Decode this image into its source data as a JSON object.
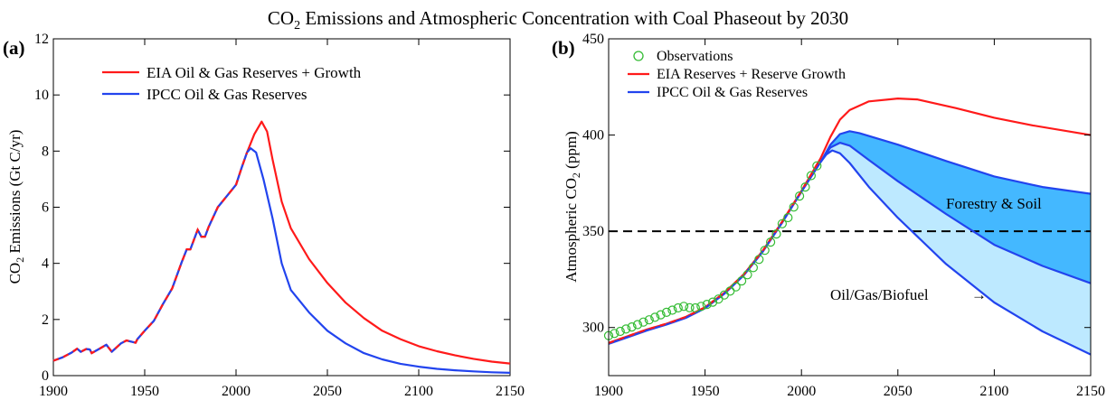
{
  "title_main": "CO",
  "title_sub": "2",
  "title_rest": " Emissions and Atmospheric Concentration with Coal Phaseout by 2030",
  "chart_data": [
    {
      "type": "line",
      "panel_label": "(a)",
      "ylabel_pre": "CO",
      "ylabel_sub": "2",
      "ylabel_post": " Emissions (Gt C/yr)",
      "xlim": [
        1900,
        2150
      ],
      "ylim": [
        0,
        12
      ],
      "xticks": [
        1900,
        1950,
        2000,
        2050,
        2100,
        2150
      ],
      "yticks": [
        0,
        2,
        4,
        6,
        8,
        10,
        12
      ],
      "legend_position": "top-left",
      "series": [
        {
          "name": "EIA Oil & Gas Reserves + Growth",
          "color": "#ff1a1a",
          "dashed_over_history": true,
          "points": [
            [
              1900,
              0.53
            ],
            [
              1905,
              0.65
            ],
            [
              1910,
              0.82
            ],
            [
              1913,
              0.96
            ],
            [
              1915,
              0.85
            ],
            [
              1918,
              0.95
            ],
            [
              1920,
              0.93
            ],
            [
              1921,
              0.8
            ],
            [
              1925,
              0.95
            ],
            [
              1929,
              1.1
            ],
            [
              1932,
              0.85
            ],
            [
              1937,
              1.15
            ],
            [
              1940,
              1.25
            ],
            [
              1945,
              1.17
            ],
            [
              1946,
              1.3
            ],
            [
              1950,
              1.6
            ],
            [
              1955,
              1.95
            ],
            [
              1960,
              2.55
            ],
            [
              1965,
              3.1
            ],
            [
              1970,
              4.0
            ],
            [
              1973,
              4.5
            ],
            [
              1975,
              4.5
            ],
            [
              1979,
              5.2
            ],
            [
              1981,
              4.95
            ],
            [
              1983,
              4.95
            ],
            [
              1985,
              5.3
            ],
            [
              1990,
              6.0
            ],
            [
              1995,
              6.4
            ],
            [
              2000,
              6.8
            ],
            [
              2003,
              7.4
            ],
            [
              2006,
              7.95
            ],
            [
              2010,
              8.6
            ],
            [
              2014,
              9.05
            ],
            [
              2017,
              8.7
            ],
            [
              2020,
              7.7
            ],
            [
              2025,
              6.2
            ],
            [
              2030,
              5.25
            ],
            [
              2040,
              4.15
            ],
            [
              2050,
              3.3
            ],
            [
              2060,
              2.6
            ],
            [
              2070,
              2.05
            ],
            [
              2080,
              1.6
            ],
            [
              2090,
              1.3
            ],
            [
              2100,
              1.05
            ],
            [
              2110,
              0.87
            ],
            [
              2120,
              0.72
            ],
            [
              2130,
              0.6
            ],
            [
              2140,
              0.5
            ],
            [
              2150,
              0.43
            ]
          ]
        },
        {
          "name": "IPCC Oil & Gas Reserves",
          "color": "#2244ee",
          "points": [
            [
              1900,
              0.53
            ],
            [
              1905,
              0.65
            ],
            [
              1910,
              0.82
            ],
            [
              1913,
              0.96
            ],
            [
              1915,
              0.85
            ],
            [
              1918,
              0.95
            ],
            [
              1920,
              0.93
            ],
            [
              1921,
              0.8
            ],
            [
              1925,
              0.95
            ],
            [
              1929,
              1.1
            ],
            [
              1932,
              0.85
            ],
            [
              1937,
              1.15
            ],
            [
              1940,
              1.25
            ],
            [
              1945,
              1.17
            ],
            [
              1946,
              1.3
            ],
            [
              1950,
              1.6
            ],
            [
              1955,
              1.95
            ],
            [
              1960,
              2.55
            ],
            [
              1965,
              3.1
            ],
            [
              1970,
              4.0
            ],
            [
              1973,
              4.5
            ],
            [
              1975,
              4.5
            ],
            [
              1979,
              5.2
            ],
            [
              1981,
              4.95
            ],
            [
              1983,
              4.95
            ],
            [
              1985,
              5.3
            ],
            [
              1990,
              6.0
            ],
            [
              1995,
              6.4
            ],
            [
              2000,
              6.8
            ],
            [
              2003,
              7.4
            ],
            [
              2006,
              7.95
            ],
            [
              2008,
              8.1
            ],
            [
              2011,
              7.95
            ],
            [
              2015,
              7.0
            ],
            [
              2020,
              5.6
            ],
            [
              2025,
              4.0
            ],
            [
              2030,
              3.05
            ],
            [
              2040,
              2.25
            ],
            [
              2050,
              1.6
            ],
            [
              2060,
              1.15
            ],
            [
              2070,
              0.8
            ],
            [
              2080,
              0.58
            ],
            [
              2090,
              0.42
            ],
            [
              2100,
              0.32
            ],
            [
              2110,
              0.24
            ],
            [
              2120,
              0.19
            ],
            [
              2130,
              0.15
            ],
            [
              2140,
              0.12
            ],
            [
              2150,
              0.1
            ]
          ]
        }
      ]
    },
    {
      "type": "line",
      "panel_label": "(b)",
      "ylabel_pre": "Atmospheric CO",
      "ylabel_sub": "2",
      "ylabel_post": " (ppm)",
      "xlim": [
        1900,
        2150
      ],
      "ylim": [
        275,
        450
      ],
      "xticks": [
        1900,
        1950,
        2000,
        2050,
        2100,
        2150
      ],
      "yticks": [
        300,
        350,
        400,
        450
      ],
      "legend_position": "top-left",
      "reference_line": 350,
      "annotations": [
        "Forestry & Soil",
        "Oil/Gas/Biofuel"
      ],
      "arrow_glyph": "→",
      "fills": [
        {
          "between": [
            "upper_blue",
            "lower_blue"
          ],
          "color": "#44b8ff"
        },
        {
          "between": [
            "lower_blue",
            "bottom_blue"
          ],
          "color": "#bde9ff"
        }
      ],
      "series": [
        {
          "name": "Observations",
          "kind": "markers",
          "color": "#33bb33",
          "points": [
            [
              1900,
              295.8
            ],
            [
              1903,
              296.9
            ],
            [
              1906,
              298.0
            ],
            [
              1909,
              299.2
            ],
            [
              1912,
              300.3
            ],
            [
              1915,
              301.5
            ],
            [
              1918,
              302.8
            ],
            [
              1921,
              304.0
            ],
            [
              1924,
              305.3
            ],
            [
              1927,
              306.6
            ],
            [
              1930,
              307.9
            ],
            [
              1933,
              309.0
            ],
            [
              1936,
              310.2
            ],
            [
              1939,
              311.0
            ],
            [
              1942,
              310.3
            ],
            [
              1945,
              310.2
            ],
            [
              1948,
              311.0
            ],
            [
              1951,
              312.0
            ],
            [
              1954,
              313.2
            ],
            [
              1957,
              314.8
            ],
            [
              1960,
              316.9
            ],
            [
              1963,
              318.9
            ],
            [
              1966,
              321.1
            ],
            [
              1969,
              324.2
            ],
            [
              1972,
              327.4
            ],
            [
              1975,
              331.1
            ],
            [
              1978,
              335.4
            ],
            [
              1981,
              340.1
            ],
            [
              1984,
              344.4
            ],
            [
              1987,
              348.6
            ],
            [
              1990,
              353.9
            ],
            [
              1993,
              357.1
            ],
            [
              1996,
              362.6
            ],
            [
              1999,
              368.3
            ],
            [
              2002,
              373.0
            ],
            [
              2005,
              378.9
            ],
            [
              2008,
              384.0
            ]
          ]
        },
        {
          "name": "EIA Reserves + Reserve Growth",
          "color": "#ff1a1a",
          "dashed_over_history": true,
          "points": [
            [
              1900,
              292
            ],
            [
              1910,
              295.5
            ],
            [
              1920,
              299
            ],
            [
              1930,
              302
            ],
            [
              1940,
              305.5
            ],
            [
              1950,
              310.5
            ],
            [
              1960,
              318
            ],
            [
              1970,
              327.5
            ],
            [
              1980,
              340
            ],
            [
              1990,
              355
            ],
            [
              2000,
              371
            ],
            [
              2010,
              388
            ],
            [
              2015,
              399
            ],
            [
              2020,
              408
            ],
            [
              2025,
              413
            ],
            [
              2035,
              417.5
            ],
            [
              2050,
              419
            ],
            [
              2060,
              418.5
            ],
            [
              2080,
              414
            ],
            [
              2100,
              409
            ],
            [
              2120,
              405
            ],
            [
              2150,
              400
            ]
          ]
        },
        {
          "name": "IPCC Oil & Gas Reserves",
          "key": "upper_blue",
          "color": "#2244ee",
          "points": [
            [
              1900,
              291.5
            ],
            [
              1910,
              295
            ],
            [
              1920,
              298.5
            ],
            [
              1930,
              301.5
            ],
            [
              1940,
              305
            ],
            [
              1950,
              310
            ],
            [
              1960,
              317.5
            ],
            [
              1970,
              327
            ],
            [
              1980,
              339.5
            ],
            [
              1990,
              354.5
            ],
            [
              2000,
              370.5
            ],
            [
              2010,
              386
            ],
            [
              2015,
              395
            ],
            [
              2020,
              400.5
            ],
            [
              2025,
              402
            ],
            [
              2030,
              401
            ],
            [
              2050,
              395
            ],
            [
              2075,
              386.5
            ],
            [
              2100,
              378.5
            ],
            [
              2125,
              373
            ],
            [
              2150,
              369.5
            ]
          ]
        },
        {
          "key": "lower_blue",
          "color": "#2244ee",
          "points": [
            [
              2010,
              386
            ],
            [
              2015,
              393.5
            ],
            [
              2020,
              396
            ],
            [
              2025,
              394.5
            ],
            [
              2035,
              387
            ],
            [
              2050,
              376
            ],
            [
              2075,
              359
            ],
            [
              2100,
              343
            ],
            [
              2125,
              332
            ],
            [
              2150,
              323
            ]
          ]
        },
        {
          "key": "bottom_blue",
          "color": "#2244ee",
          "points": [
            [
              2010,
              386
            ],
            [
              2013,
              390
            ],
            [
              2016,
              392
            ],
            [
              2020,
              390.5
            ],
            [
              2025,
              385.5
            ],
            [
              2035,
              373
            ],
            [
              2050,
              357
            ],
            [
              2075,
              333
            ],
            [
              2100,
              313
            ],
            [
              2125,
              298
            ],
            [
              2150,
              286
            ]
          ]
        }
      ]
    }
  ]
}
